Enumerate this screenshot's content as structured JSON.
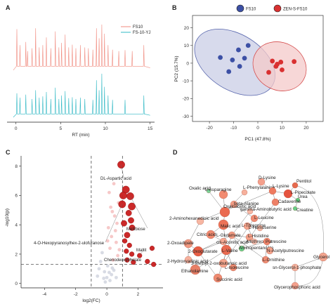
{
  "panels": {
    "a": {
      "label": "A",
      "legend": [
        {
          "name": "FS10",
          "color": "#f08a7e"
        },
        {
          "name": "FS-10-YJ",
          "color": "#2fb8c4"
        }
      ],
      "xticks": [
        "0",
        "5",
        "10",
        "15"
      ],
      "xlabel": "RT (min)"
    },
    "b": {
      "label": "B",
      "legend": [
        {
          "name": "FS10",
          "color": "#3c50a5"
        },
        {
          "name": "ZEN-S-FS10",
          "color": "#d93131"
        }
      ],
      "xlabel": "PC1 (47.8%)",
      "ylabel": "PC2 (15.7%)"
    },
    "c": {
      "label": "C",
      "xlabel": "log2(FC)",
      "ylabel": "-log10(p)",
      "annotations": [
        "DL-Aspartic acid",
        "Mellibiose",
        "4-O-Hexopyranosylhex-2-ulofuranose",
        "Maltit",
        "Chenodeoxycholate"
      ]
    },
    "d": {
      "label": "D",
      "nodes": [
        "D-Lysine",
        "Pentitol",
        "Oxalic acid",
        "L-Asparagine",
        "L-Phenylalanine",
        "L-Lysine",
        "L-Pipecolate",
        "Urea",
        "Creatine",
        "Cadaverine",
        "beta-Alanine",
        "Oxaloacetic acid",
        "gamma-Aminobutyric acid",
        "L-Leucine",
        "2-Aminohexanedioic acid",
        "L-Threonine",
        "Malic acid",
        "L-Homoserine",
        "Citric acid",
        "L-Glutamate",
        "L-Histidine",
        "cis-Aconitic acid",
        "Allothreonine",
        "Putrescine",
        "2-Oxoadipate",
        "2-Oxoglutarate",
        "L-Valine",
        "Aminopentanoate",
        "N-Acetylputrescine",
        "Glycerol",
        "L-Ornithine",
        "2-Hydroxyadipic acid",
        "L-Isoleucine",
        "3-Methyl-2-oxobutanoic acid",
        "sn-Glycerol-1-phosphate",
        "Ethanolamine",
        "Succinic acid",
        "Glycerophosphoric acid"
      ]
    }
  },
  "chart_data": [
    {
      "type": "line",
      "title": "",
      "xlabel": "RT (min)",
      "ylabel": "",
      "xlim": [
        -1,
        15.5
      ],
      "series": [
        {
          "name": "FS10",
          "color": "#f08a7e",
          "baseline": 0.35,
          "peaks": [
            [
              0.1,
              0.9
            ],
            [
              0.45,
              0.55
            ],
            [
              1.1,
              0.62
            ],
            [
              1.3,
              0.42
            ],
            [
              1.8,
              0.48
            ],
            [
              2.2,
              0.92
            ],
            [
              2.6,
              0.5
            ],
            [
              3.0,
              0.55
            ],
            [
              3.4,
              0.72
            ],
            [
              3.9,
              0.48
            ],
            [
              4.4,
              0.85
            ],
            [
              4.8,
              0.5
            ],
            [
              5.1,
              0.6
            ],
            [
              5.5,
              0.78
            ],
            [
              5.9,
              0.5
            ],
            [
              6.3,
              0.56
            ],
            [
              6.7,
              0.48
            ],
            [
              7.2,
              0.55
            ],
            [
              7.7,
              0.5
            ],
            [
              8.1,
              0.48
            ],
            [
              8.6,
              0.45
            ],
            [
              9.0,
              0.92
            ],
            [
              9.3,
              0.7
            ],
            [
              9.6,
              1.0
            ],
            [
              9.9,
              0.8
            ],
            [
              10.3,
              0.55
            ],
            [
              10.8,
              0.45
            ],
            [
              11.5,
              0.42
            ],
            [
              12.2,
              0.44
            ],
            [
              13.0,
              0.42
            ],
            [
              14.3,
              0.55
            ]
          ]
        },
        {
          "name": "FS-10-YJ",
          "color": "#2fb8c4",
          "baseline": 0.3,
          "peaks": [
            [
              0.1,
              0.55
            ],
            [
              0.45,
              0.45
            ],
            [
              1.1,
              0.52
            ],
            [
              1.8,
              0.42
            ],
            [
              2.2,
              0.62
            ],
            [
              2.6,
              0.45
            ],
            [
              3.0,
              0.48
            ],
            [
              3.4,
              0.58
            ],
            [
              3.9,
              0.42
            ],
            [
              4.4,
              0.68
            ],
            [
              4.8,
              0.42
            ],
            [
              5.1,
              0.5
            ],
            [
              5.5,
              0.6
            ],
            [
              5.9,
              0.44
            ],
            [
              6.3,
              0.46
            ],
            [
              6.7,
              0.42
            ],
            [
              7.2,
              0.45
            ],
            [
              7.7,
              0.42
            ],
            [
              8.6,
              0.4
            ],
            [
              9.0,
              0.85
            ],
            [
              9.3,
              0.62
            ],
            [
              9.6,
              1.0
            ],
            [
              9.9,
              0.7
            ],
            [
              10.3,
              0.5
            ],
            [
              10.8,
              0.4
            ],
            [
              12.2,
              0.4
            ],
            [
              14.3,
              0.5
            ]
          ]
        }
      ]
    },
    {
      "type": "scatter",
      "title": "",
      "xlabel": "PC1 (47.8%)",
      "ylabel": "PC2 (15.7%)",
      "xlim": [
        -27,
        27
      ],
      "ylim": [
        -33,
        27
      ],
      "xticks": [
        -20,
        -10,
        0,
        10,
        20
      ],
      "yticks": [
        -30,
        -20,
        -10,
        0,
        10,
        20
      ],
      "series": [
        {
          "name": "FS10",
          "color": "#3c50a5",
          "points": [
            [
              -15.5,
              3.2
            ],
            [
              -12,
              -4.8
            ],
            [
              -10.5,
              1.8
            ],
            [
              -8,
              7.5
            ],
            [
              -7.5,
              -1.8
            ],
            [
              -5.5,
              2.8
            ],
            [
              -4,
              10
            ]
          ]
        },
        {
          "name": "ZEN-S-FS10",
          "color": "#d93131",
          "points": [
            [
              4.5,
              -5.2
            ],
            [
              6,
              1.2
            ],
            [
              7.5,
              -1.8
            ],
            [
              8,
              -0.6
            ],
            [
              9.5,
              0.6
            ],
            [
              10,
              -3.8
            ],
            [
              15,
              0.9
            ]
          ]
        }
      ],
      "ellipses": [
        {
          "series": "FS10",
          "cx": -9.5,
          "cy": 0.5,
          "rx": 11.5,
          "ry": 25,
          "angle": -58,
          "fill": "#c9cde6",
          "stroke": "#5866ad"
        },
        {
          "series": "ZEN-S-FS10",
          "cx": 9,
          "cy": -1.8,
          "rx": 9.8,
          "ry": 15.5,
          "angle": -62,
          "fill": "#f4caca",
          "stroke": "#d44a4a"
        }
      ]
    },
    {
      "type": "scatter",
      "title": "",
      "xlabel": "log2(FC)",
      "ylabel": "-log10(p)",
      "xlim": [
        -5.5,
        3.6
      ],
      "ylim": [
        -0.3,
        8.7
      ],
      "xticks": [
        -4,
        -2,
        0,
        2
      ],
      "yticks": [
        0,
        2,
        4,
        6,
        8
      ],
      "cutoffs": {
        "fc": [
          -1,
          1
        ],
        "p": 1.3
      },
      "series": [
        {
          "name": "up",
          "color": "#c81d1d",
          "points": [
            [
              0.92,
              8.1
            ],
            [
              1.22,
              6.4
            ],
            [
              1.05,
              6.0
            ],
            [
              1.5,
              5.95
            ],
            [
              0.98,
              5.4
            ],
            [
              1.6,
              5.25
            ],
            [
              1.4,
              4.8
            ],
            [
              1.55,
              4.3
            ],
            [
              1.1,
              4.1
            ],
            [
              1.62,
              3.8
            ],
            [
              1.3,
              3.3
            ],
            [
              1.15,
              2.9
            ],
            [
              1.45,
              2.6
            ],
            [
              1.25,
              2.2
            ],
            [
              1.6,
              2.0
            ],
            [
              2.1,
              1.9
            ],
            [
              2.6,
              1.5
            ],
            [
              3.0,
              1.3
            ],
            [
              1.3,
              1.6
            ],
            [
              1.7,
              1.45
            ],
            [
              2.9,
              2.4
            ]
          ]
        },
        {
          "name": "down",
          "color": "#c8ccd8",
          "points": [
            [
              -0.3,
              2.1
            ],
            [
              -0.5,
              1.0
            ],
            [
              -0.15,
              0.8
            ],
            [
              0.05,
              1.2
            ],
            [
              0.3,
              0.6
            ],
            [
              -0.6,
              0.5
            ],
            [
              0.0,
              0.4
            ],
            [
              0.2,
              0.2
            ],
            [
              -0.1,
              0.1
            ],
            [
              0.45,
              0.9
            ],
            [
              -0.4,
              1.5
            ],
            [
              0.6,
              0.4
            ],
            [
              0.15,
              0.75
            ],
            [
              -0.2,
              0.35
            ],
            [
              0.35,
              1.05
            ]
          ]
        },
        {
          "name": "neutral",
          "color": "#f2b0b0",
          "points": [
            [
              0.1,
              3.8
            ],
            [
              0.5,
              4.6
            ],
            [
              0.3,
              3.2
            ],
            [
              0.6,
              2.8
            ],
            [
              0.2,
              2.4
            ],
            [
              0.7,
              1.9
            ],
            [
              0.4,
              1.6
            ],
            [
              0.55,
              3.6
            ],
            [
              0.25,
              5.2
            ],
            [
              0.65,
              4.1
            ],
            [
              0.15,
              6.2
            ],
            [
              0.45,
              6.8
            ],
            [
              0.75,
              5.5
            ],
            [
              0.35,
              4.9
            ],
            [
              0.05,
              2.9
            ],
            [
              0.8,
              2.3
            ]
          ]
        }
      ]
    }
  ]
}
